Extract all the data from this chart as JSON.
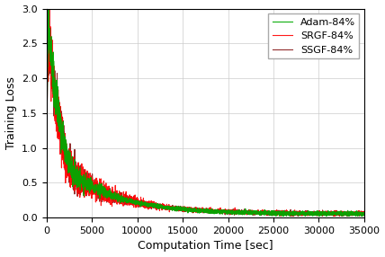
{
  "title": "",
  "xlabel": "Computation Time [sec]",
  "ylabel": "Training Loss",
  "xlim": [
    0,
    35000
  ],
  "ylim": [
    0.0,
    3.0
  ],
  "yticks": [
    0.0,
    0.5,
    1.0,
    1.5,
    2.0,
    2.5,
    3.0
  ],
  "xticks": [
    0,
    5000,
    10000,
    15000,
    20000,
    25000,
    30000,
    35000
  ],
  "lines": [
    {
      "label": "Adam-84%",
      "color": "#00aa00",
      "lw": 0.8
    },
    {
      "label": "SRGF-84%",
      "color": "#ff0000",
      "lw": 0.8
    },
    {
      "label": "SSGF-84%",
      "color": "#8b2020",
      "lw": 0.8
    }
  ],
  "legend_loc": "upper right",
  "grid": true,
  "background_color": "#ffffff",
  "n_points": 3500,
  "x_max": 35000
}
